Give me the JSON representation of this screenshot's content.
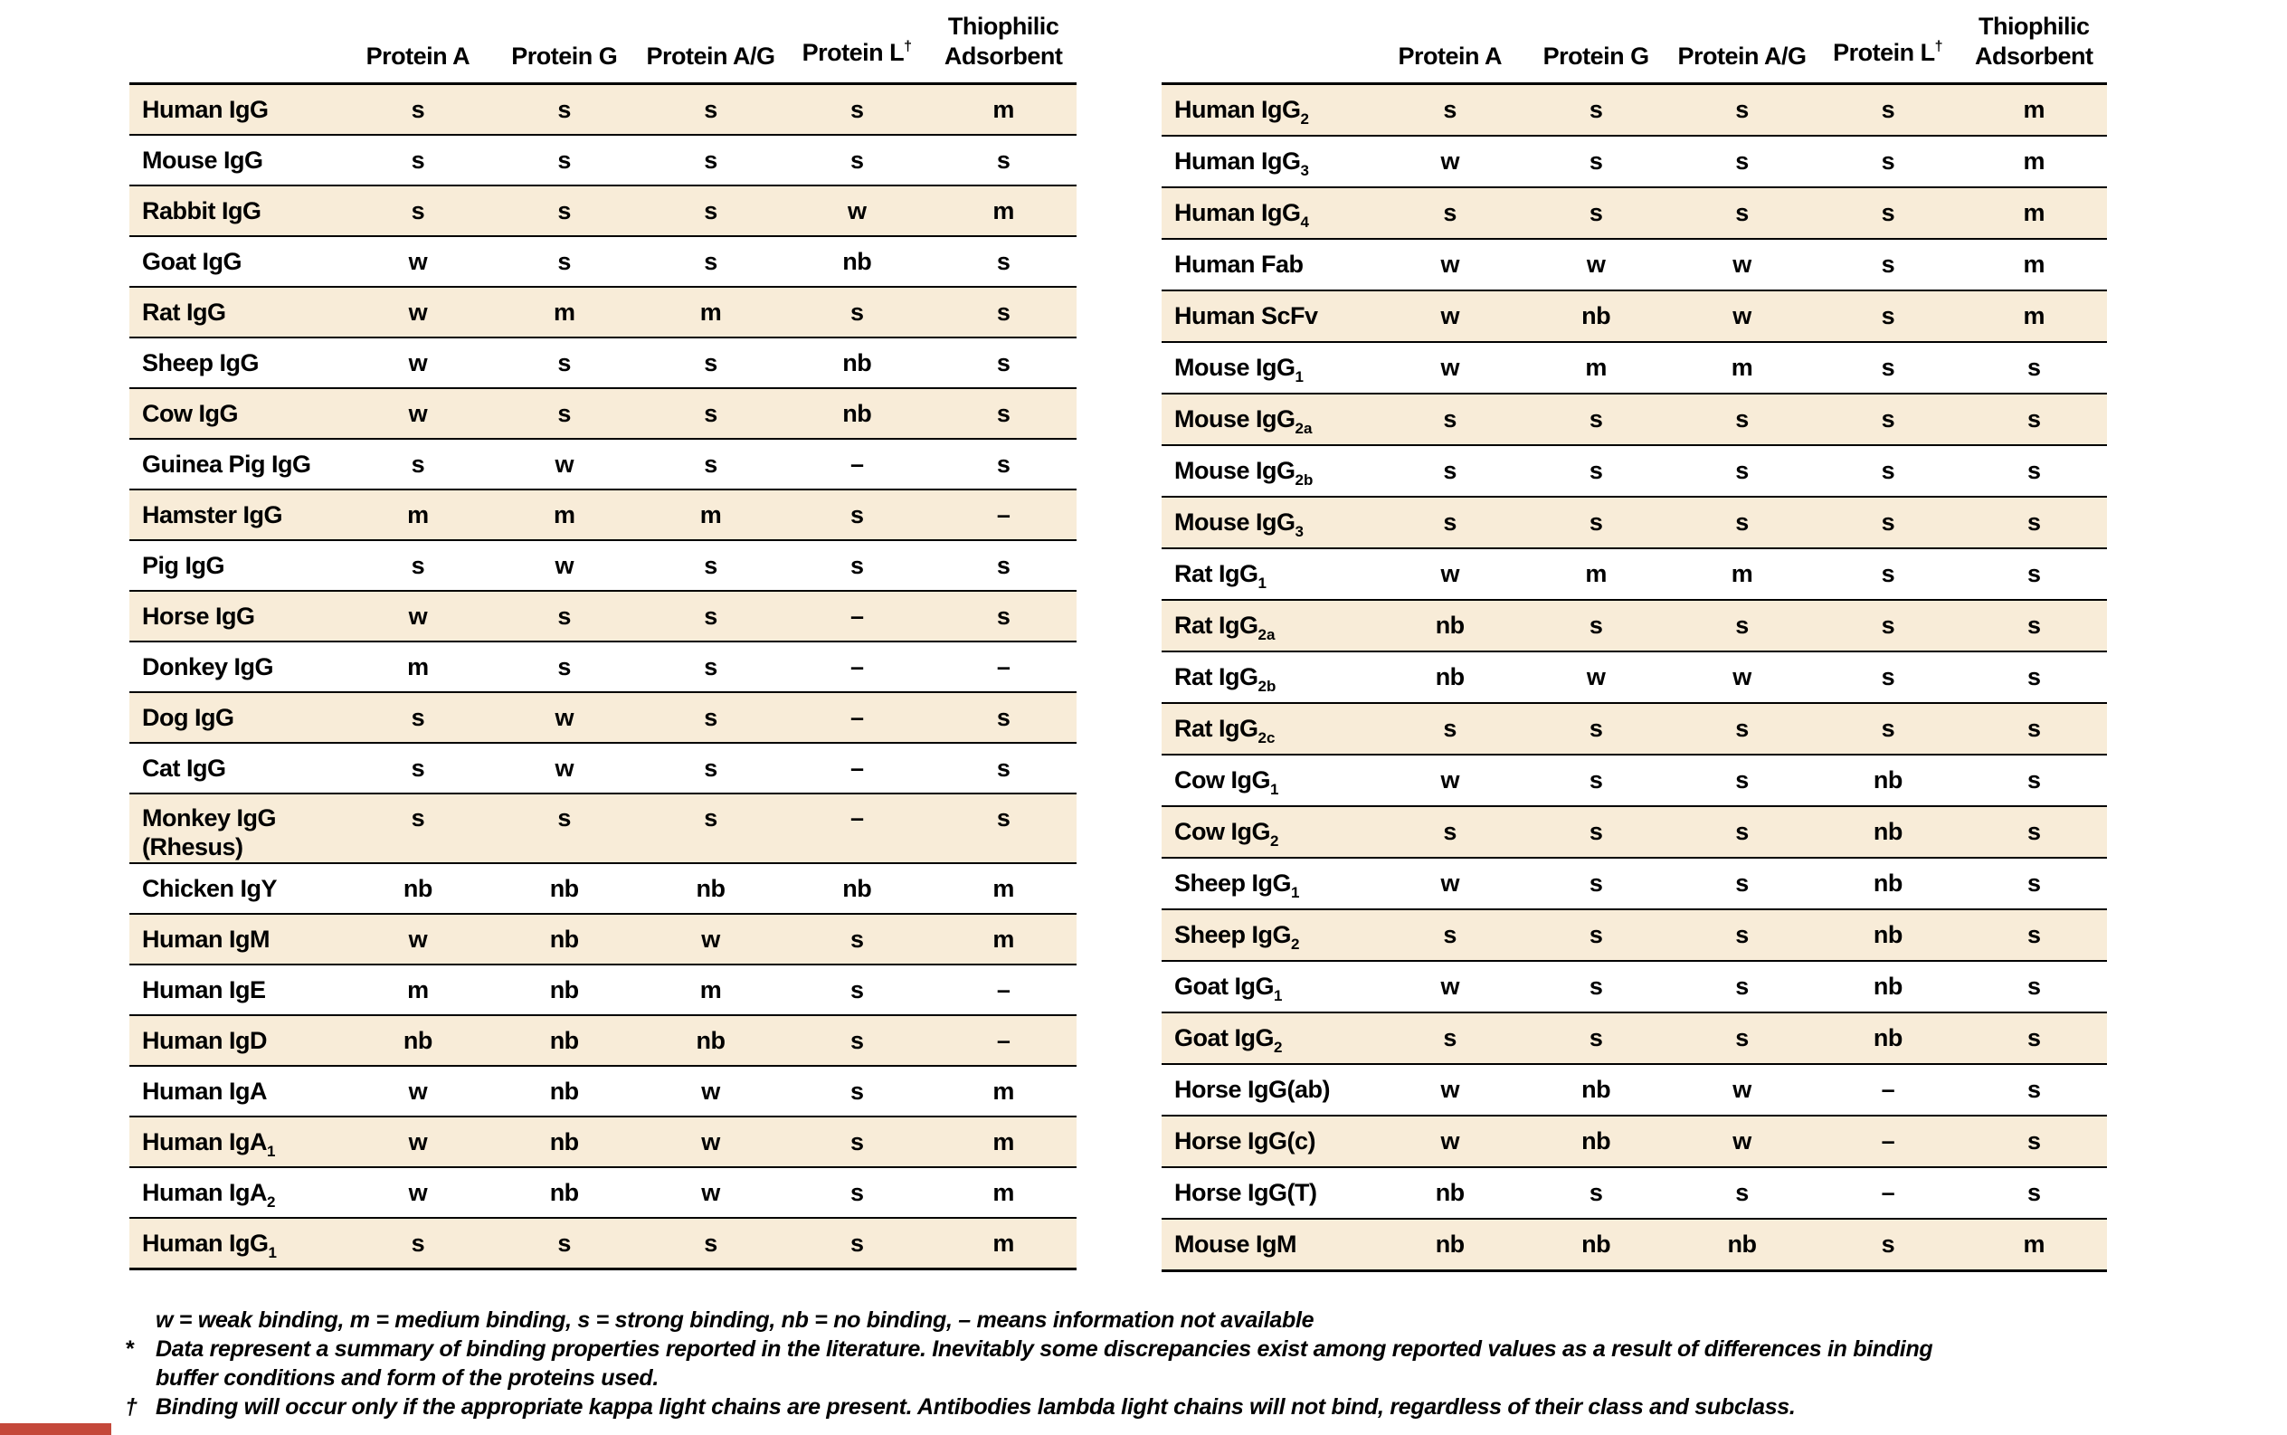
{
  "columns": [
    {
      "label": "Protein A"
    },
    {
      "label": "Protein G"
    },
    {
      "label": "Protein A/G"
    },
    {
      "label": "Protein L",
      "sup": "†"
    },
    {
      "label": "Thiophilic",
      "label2": "Adsorbent"
    }
  ],
  "tables": {
    "left": {
      "rows": [
        {
          "species": "Human IgG",
          "values": [
            "s",
            "s",
            "s",
            "s",
            "m"
          ]
        },
        {
          "species": "Mouse IgG",
          "values": [
            "s",
            "s",
            "s",
            "s",
            "s"
          ]
        },
        {
          "species": "Rabbit IgG",
          "values": [
            "s",
            "s",
            "s",
            "w",
            "m"
          ]
        },
        {
          "species": "Goat IgG",
          "values": [
            "w",
            "s",
            "s",
            "nb",
            "s"
          ]
        },
        {
          "species": "Rat IgG",
          "values": [
            "w",
            "m",
            "m",
            "s",
            "s"
          ]
        },
        {
          "species": "Sheep IgG",
          "values": [
            "w",
            "s",
            "s",
            "nb",
            "s"
          ]
        },
        {
          "species": "Cow IgG",
          "values": [
            "w",
            "s",
            "s",
            "nb",
            "s"
          ]
        },
        {
          "species": "Guinea Pig IgG",
          "values": [
            "s",
            "w",
            "s",
            "–",
            "s"
          ]
        },
        {
          "species": "Hamster IgG",
          "values": [
            "m",
            "m",
            "m",
            "s",
            "–"
          ]
        },
        {
          "species": "Pig IgG",
          "values": [
            "s",
            "w",
            "s",
            "s",
            "s"
          ]
        },
        {
          "species": "Horse IgG",
          "values": [
            "w",
            "s",
            "s",
            "–",
            "s"
          ]
        },
        {
          "species": "Donkey IgG",
          "values": [
            "m",
            "s",
            "s",
            "–",
            "–"
          ]
        },
        {
          "species": "Dog IgG",
          "values": [
            "s",
            "w",
            "s",
            "–",
            "s"
          ]
        },
        {
          "species": "Cat IgG",
          "values": [
            "s",
            "w",
            "s",
            "–",
            "s"
          ]
        },
        {
          "species": "Monkey IgG",
          "line2": "(Rhesus)",
          "values": [
            "s",
            "s",
            "s",
            "–",
            "s"
          ]
        },
        {
          "species": "Chicken IgY",
          "values": [
            "nb",
            "nb",
            "nb",
            "nb",
            "m"
          ]
        },
        {
          "species": "Human IgM",
          "values": [
            "w",
            "nb",
            "w",
            "s",
            "m"
          ]
        },
        {
          "species": "Human IgE",
          "values": [
            "m",
            "nb",
            "m",
            "s",
            "–"
          ]
        },
        {
          "species": "Human IgD",
          "values": [
            "nb",
            "nb",
            "nb",
            "s",
            "–"
          ]
        },
        {
          "species": "Human IgA",
          "values": [
            "w",
            "nb",
            "w",
            "s",
            "m"
          ]
        },
        {
          "species": "Human IgA",
          "sub": "1",
          "values": [
            "w",
            "nb",
            "w",
            "s",
            "m"
          ]
        },
        {
          "species": "Human IgA",
          "sub": "2",
          "values": [
            "w",
            "nb",
            "w",
            "s",
            "m"
          ]
        },
        {
          "species": "Human IgG",
          "sub": "1",
          "values": [
            "s",
            "s",
            "s",
            "s",
            "m"
          ]
        }
      ]
    },
    "right": {
      "rows": [
        {
          "species": "Human IgG",
          "sub": "2",
          "values": [
            "s",
            "s",
            "s",
            "s",
            "m"
          ]
        },
        {
          "species": "Human IgG",
          "sub": "3",
          "values": [
            "w",
            "s",
            "s",
            "s",
            "m"
          ]
        },
        {
          "species": "Human IgG",
          "sub": "4",
          "values": [
            "s",
            "s",
            "s",
            "s",
            "m"
          ]
        },
        {
          "species": "Human Fab",
          "values": [
            "w",
            "w",
            "w",
            "s",
            "m"
          ]
        },
        {
          "species": "Human ScFv",
          "values": [
            "w",
            "nb",
            "w",
            "s",
            "m"
          ]
        },
        {
          "species": "Mouse IgG",
          "sub": "1",
          "values": [
            "w",
            "m",
            "m",
            "s",
            "s"
          ]
        },
        {
          "species": "Mouse IgG",
          "sub": "2a",
          "values": [
            "s",
            "s",
            "s",
            "s",
            "s"
          ]
        },
        {
          "species": "Mouse IgG",
          "sub": "2b",
          "values": [
            "s",
            "s",
            "s",
            "s",
            "s"
          ]
        },
        {
          "species": "Mouse IgG",
          "sub": "3",
          "values": [
            "s",
            "s",
            "s",
            "s",
            "s"
          ]
        },
        {
          "species": "Rat IgG",
          "sub": "1",
          "values": [
            "w",
            "m",
            "m",
            "s",
            "s"
          ]
        },
        {
          "species": "Rat IgG",
          "sub": "2a",
          "values": [
            "nb",
            "s",
            "s",
            "s",
            "s"
          ]
        },
        {
          "species": "Rat IgG",
          "sub": "2b",
          "values": [
            "nb",
            "w",
            "w",
            "s",
            "s"
          ]
        },
        {
          "species": "Rat IgG",
          "sub": "2c",
          "values": [
            "s",
            "s",
            "s",
            "s",
            "s"
          ]
        },
        {
          "species": "Cow IgG",
          "sub": "1",
          "values": [
            "w",
            "s",
            "s",
            "nb",
            "s"
          ]
        },
        {
          "species": "Cow IgG",
          "sub": "2",
          "values": [
            "s",
            "s",
            "s",
            "nb",
            "s"
          ]
        },
        {
          "species": "Sheep IgG",
          "sub": "1",
          "values": [
            "w",
            "s",
            "s",
            "nb",
            "s"
          ]
        },
        {
          "species": "Sheep IgG",
          "sub": "2",
          "values": [
            "s",
            "s",
            "s",
            "nb",
            "s"
          ]
        },
        {
          "species": "Goat IgG",
          "sub": "1",
          "values": [
            "w",
            "s",
            "s",
            "nb",
            "s"
          ]
        },
        {
          "species": "Goat IgG",
          "sub": "2",
          "values": [
            "s",
            "s",
            "s",
            "nb",
            "s"
          ]
        },
        {
          "species": "Horse IgG(ab)",
          "values": [
            "w",
            "nb",
            "w",
            "–",
            "s"
          ]
        },
        {
          "species": "Horse IgG(c)",
          "values": [
            "w",
            "nb",
            "w",
            "–",
            "s"
          ]
        },
        {
          "species": "Horse IgG(T)",
          "values": [
            "nb",
            "s",
            "s",
            "–",
            "s"
          ]
        },
        {
          "species": "Mouse IgM",
          "values": [
            "nb",
            "nb",
            "nb",
            "s",
            "m"
          ]
        }
      ]
    }
  },
  "footnotes": [
    {
      "marker": "",
      "lines": [
        "w = weak binding, m = medium binding, s = strong binding, nb = no binding, – means information not available"
      ]
    },
    {
      "marker": "*",
      "lines": [
        "Data represent a summary of binding properties reported in the literature. Inevitably some discrepancies exist among reported values as a result of differences in binding",
        "buffer conditions and form of the proteins used."
      ]
    },
    {
      "marker": "†",
      "lines": [
        "Binding will occur only if the appropriate kappa light chains are present. Antibodies lambda light chains will not bind, regardless of their class and subclass."
      ]
    }
  ],
  "colors": {
    "row_shade": "#F8ECD8",
    "rule": "#000000",
    "accent_bar": "#C4483A"
  }
}
